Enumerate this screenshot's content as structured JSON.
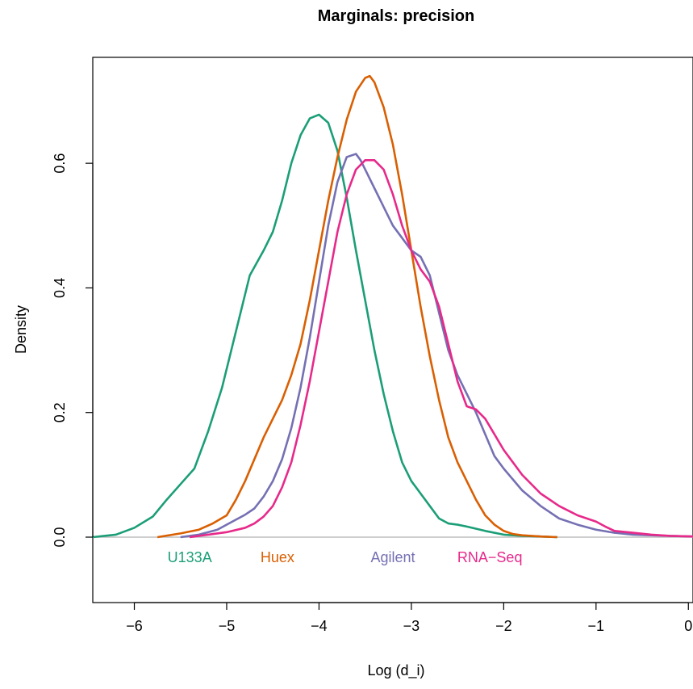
{
  "chart_data": {
    "type": "line",
    "title": "Marginals: precision",
    "xlabel": "Log (d_i)",
    "ylabel": "Density",
    "xlim": [
      -6.45,
      0.05
    ],
    "ylim": [
      -0.105,
      0.77
    ],
    "x_ticks": [
      -6,
      -5,
      -4,
      -3,
      -2,
      -1,
      0
    ],
    "x_tick_labels": [
      "−6",
      "−5",
      "−4",
      "−3",
      "−2",
      "−1",
      "0"
    ],
    "y_ticks": [
      0.0,
      0.2,
      0.4,
      0.6
    ],
    "y_tick_labels": [
      "0.0",
      "0.2",
      "0.4",
      "0.6"
    ],
    "baseline": 0,
    "grid": false,
    "legend_position": "bottom, inside plot, below baseline",
    "series": [
      {
        "name": "U133A",
        "color": "#1b9e77",
        "x": [
          -6.45,
          -6.2,
          -6.0,
          -5.8,
          -5.65,
          -5.5,
          -5.35,
          -5.2,
          -5.05,
          -4.9,
          -4.75,
          -4.6,
          -4.5,
          -4.4,
          -4.3,
          -4.2,
          -4.1,
          -4.0,
          -3.9,
          -3.8,
          -3.7,
          -3.6,
          -3.5,
          -3.4,
          -3.3,
          -3.2,
          -3.1,
          -3.0,
          -2.9,
          -2.8,
          -2.7,
          -2.6,
          -2.5,
          -2.4,
          -2.2,
          -2.0,
          -1.8,
          -1.6,
          -1.42
        ],
        "y": [
          0.0,
          0.004,
          0.015,
          0.033,
          0.06,
          0.085,
          0.11,
          0.17,
          0.24,
          0.33,
          0.42,
          0.46,
          0.49,
          0.54,
          0.6,
          0.645,
          0.672,
          0.678,
          0.665,
          0.62,
          0.545,
          0.46,
          0.38,
          0.3,
          0.23,
          0.17,
          0.12,
          0.09,
          0.07,
          0.05,
          0.03,
          0.022,
          0.02,
          0.017,
          0.01,
          0.004,
          0.002,
          0.001,
          0.0
        ]
      },
      {
        "name": "Huex",
        "color": "#d95f02",
        "x": [
          -5.75,
          -5.5,
          -5.3,
          -5.15,
          -5.0,
          -4.9,
          -4.8,
          -4.7,
          -4.6,
          -4.5,
          -4.4,
          -4.3,
          -4.2,
          -4.1,
          -4.0,
          -3.9,
          -3.8,
          -3.7,
          -3.6,
          -3.5,
          -3.45,
          -3.4,
          -3.3,
          -3.2,
          -3.1,
          -3.0,
          -2.9,
          -2.8,
          -2.7,
          -2.6,
          -2.5,
          -2.4,
          -2.3,
          -2.2,
          -2.1,
          -2.0,
          -1.9,
          -1.8,
          -1.6,
          -1.42
        ],
        "y": [
          0.0,
          0.006,
          0.012,
          0.022,
          0.035,
          0.06,
          0.09,
          0.125,
          0.16,
          0.19,
          0.22,
          0.26,
          0.31,
          0.38,
          0.46,
          0.54,
          0.61,
          0.67,
          0.715,
          0.737,
          0.74,
          0.73,
          0.69,
          0.63,
          0.55,
          0.46,
          0.37,
          0.29,
          0.22,
          0.16,
          0.12,
          0.09,
          0.06,
          0.035,
          0.02,
          0.01,
          0.005,
          0.003,
          0.001,
          0.0
        ]
      },
      {
        "name": "Agilent",
        "color": "#7570b3",
        "x": [
          -5.5,
          -5.3,
          -5.1,
          -4.9,
          -4.8,
          -4.7,
          -4.6,
          -4.5,
          -4.4,
          -4.3,
          -4.2,
          -4.1,
          -4.0,
          -3.9,
          -3.8,
          -3.7,
          -3.6,
          -3.55,
          -3.5,
          -3.4,
          -3.3,
          -3.2,
          -3.1,
          -3.0,
          -2.9,
          -2.8,
          -2.7,
          -2.6,
          -2.5,
          -2.4,
          -2.3,
          -2.2,
          -2.1,
          -2.0,
          -1.8,
          -1.6,
          -1.4,
          -1.2,
          -1.0,
          -0.8,
          -0.6,
          -0.4,
          -0.2,
          0.05
        ],
        "y": [
          0.0,
          0.004,
          0.012,
          0.028,
          0.036,
          0.046,
          0.065,
          0.09,
          0.125,
          0.175,
          0.24,
          0.32,
          0.41,
          0.5,
          0.57,
          0.61,
          0.615,
          0.605,
          0.59,
          0.56,
          0.53,
          0.5,
          0.48,
          0.46,
          0.45,
          0.42,
          0.36,
          0.3,
          0.26,
          0.23,
          0.2,
          0.165,
          0.13,
          0.11,
          0.075,
          0.05,
          0.03,
          0.02,
          0.012,
          0.007,
          0.004,
          0.003,
          0.002,
          0.001
        ]
      },
      {
        "name": "RNA−Seq",
        "color": "#e7298a",
        "x": [
          -5.4,
          -5.2,
          -5.0,
          -4.8,
          -4.7,
          -4.6,
          -4.5,
          -4.4,
          -4.3,
          -4.2,
          -4.1,
          -4.0,
          -3.9,
          -3.8,
          -3.7,
          -3.6,
          -3.5,
          -3.4,
          -3.3,
          -3.2,
          -3.1,
          -3.0,
          -2.9,
          -2.8,
          -2.7,
          -2.6,
          -2.5,
          -2.4,
          -2.3,
          -2.2,
          -2.1,
          -2.0,
          -1.9,
          -1.8,
          -1.6,
          -1.4,
          -1.2,
          -1.0,
          -0.9,
          -0.8,
          -0.6,
          -0.4,
          -0.2,
          0.05
        ],
        "y": [
          0.0,
          0.004,
          0.008,
          0.015,
          0.022,
          0.033,
          0.05,
          0.08,
          0.12,
          0.18,
          0.25,
          0.33,
          0.41,
          0.49,
          0.55,
          0.59,
          0.605,
          0.605,
          0.59,
          0.55,
          0.5,
          0.46,
          0.43,
          0.41,
          0.37,
          0.31,
          0.25,
          0.21,
          0.205,
          0.19,
          0.165,
          0.14,
          0.12,
          0.1,
          0.07,
          0.05,
          0.035,
          0.025,
          0.017,
          0.01,
          0.007,
          0.004,
          0.002,
          0.001
        ]
      }
    ]
  }
}
